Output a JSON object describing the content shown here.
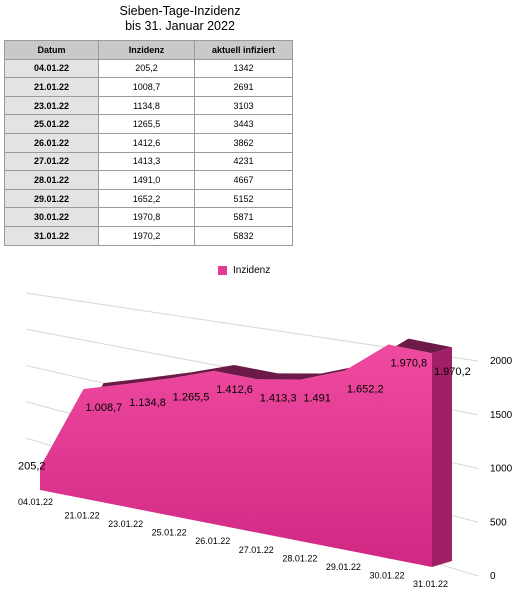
{
  "title": {
    "line1": "Sieben-Tage-Inzidenz",
    "line2": "bis 31. Januar 2022"
  },
  "table": {
    "headers": [
      "Datum",
      "Inzidenz",
      "aktuell infiziert"
    ],
    "rows": [
      [
        "04.01.22",
        "205,2",
        "1342"
      ],
      [
        "21.01.22",
        "1008,7",
        "2691"
      ],
      [
        "23.01.22",
        "1134,8",
        "3103"
      ],
      [
        "25.01.22",
        "1265,5",
        "3443"
      ],
      [
        "26.01.22",
        "1412,6",
        "3862"
      ],
      [
        "27.01.22",
        "1413,3",
        "4231"
      ],
      [
        "28.01.22",
        "1491,0",
        "4667"
      ],
      [
        "29.01.22",
        "1652,2",
        "5152"
      ],
      [
        "30.01.22",
        "1970,8",
        "5871"
      ],
      [
        "31.01.22",
        "1970,2",
        "5832"
      ]
    ]
  },
  "chart_data": {
    "type": "area",
    "categories": [
      "04.01.22",
      "21.01.22",
      "23.01.22",
      "25.01.22",
      "26.01.22",
      "27.01.22",
      "28.01.22",
      "29.01.22",
      "30.01.22",
      "31.01.22"
    ],
    "series": [
      {
        "name": "Inzidenz",
        "values": [
          205.2,
          1008.7,
          1134.8,
          1265.5,
          1412.6,
          1413.3,
          1491.0,
          1652.2,
          1970.8,
          1970.2
        ],
        "labels": [
          "205,2",
          "1.008,7",
          "1.134,8",
          "1.265,5",
          "1.412,6",
          "1.413,3",
          "1.491",
          "1.652,2",
          "1.970,8",
          "1.970,2"
        ],
        "color": "#e13a93"
      }
    ],
    "ylim": [
      0,
      2000
    ],
    "yticks": [
      "0",
      "500",
      "1000",
      "1500",
      "2000"
    ],
    "grid": true,
    "legend": "top-center"
  }
}
